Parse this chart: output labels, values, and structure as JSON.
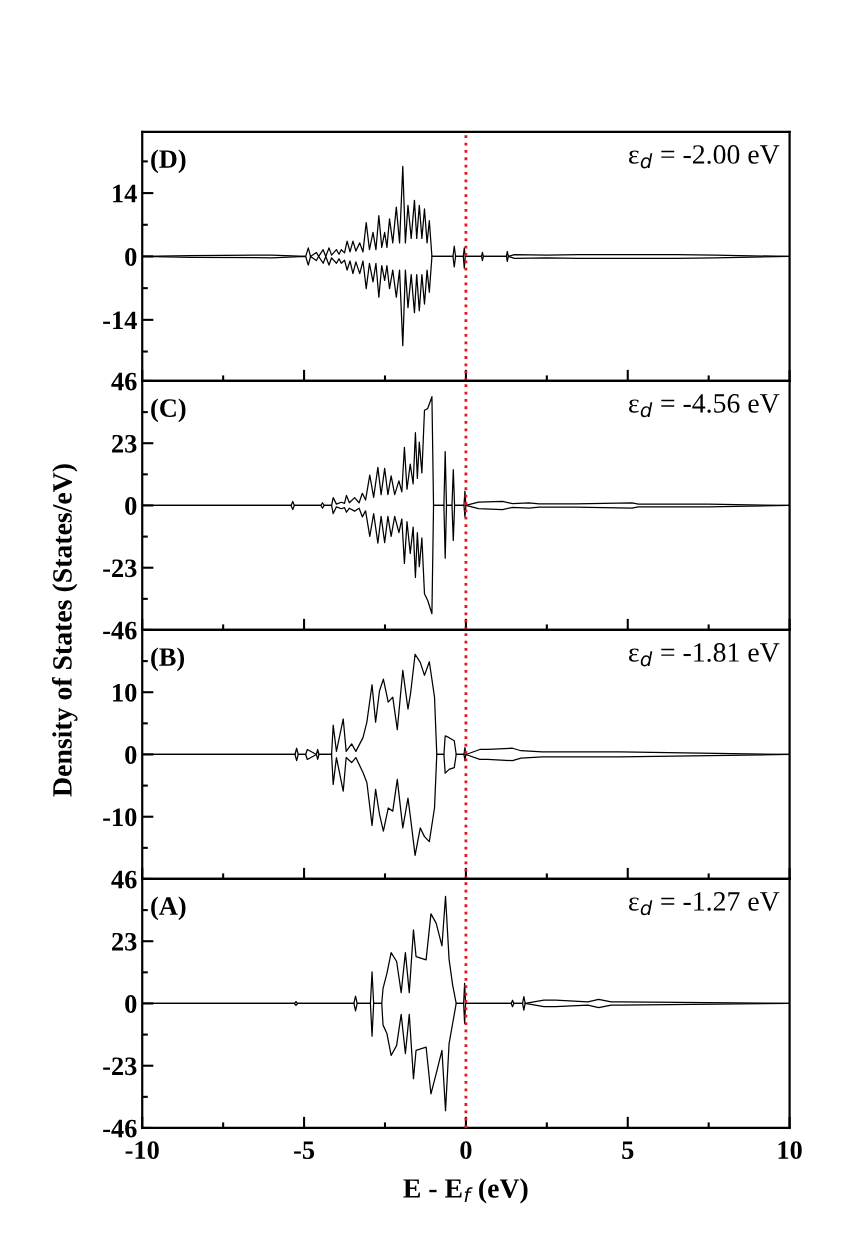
{
  "chart_data": [
    {
      "type": "line",
      "annotations": [
        "(D)",
        "ε$_{d}$ = -2.00 eV"
      ],
      "xlim": [
        -10,
        10
      ],
      "xticks": [
        -10,
        -5,
        0,
        5,
        10,
        {
          "value": -7.5,
          "label": null
        },
        {
          "value": -2.5,
          "label": null
        },
        {
          "value": 2.5,
          "label": null
        },
        {
          "value": 7.5,
          "label": null
        }
      ],
      "ylim": [
        -27.5,
        27.5
      ],
      "yticks": [
        -14,
        0,
        14,
        {
          "value": -21,
          "label": null
        },
        {
          "value": -7,
          "label": null
        },
        {
          "value": 7,
          "label": null
        },
        {
          "value": 21,
          "label": null
        }
      ],
      "tick_labels": "y",
      "grid": false,
      "legend": false,
      "ref_lines": [
        {
          "axis": "x",
          "value": 0,
          "color": "#e8141c",
          "line_style": "dotted"
        }
      ],
      "series": [
        {
          "color": "#000000",
          "x": [
            -10,
            -8.5,
            -6.0,
            -4.95,
            -4.87,
            -4.8,
            -4.62,
            -4.55,
            -4.41,
            -4.33,
            -4.23,
            -4.15,
            -4.0,
            -3.92,
            -3.85,
            -3.75,
            -3.67,
            -3.58,
            -3.49,
            -3.4,
            -3.28,
            -3.18,
            -3.08,
            -2.98,
            -2.87,
            -2.78,
            -2.69,
            -2.6,
            -2.51,
            -2.44,
            -2.36,
            -2.26,
            -2.15,
            -2.05,
            -1.95,
            -1.87,
            -1.79,
            -1.69,
            -1.59,
            -1.52,
            -1.44,
            -1.36,
            -1.28,
            -1.2,
            -1.13,
            -1.05,
            -0.4,
            -0.36,
            -0.32,
            -0.08,
            -0.05,
            -0.02,
            0.48,
            0.51,
            0.54,
            1.25,
            1.28,
            1.31,
            1.5,
            2.5,
            3.5,
            4.5,
            5.5,
            6.5,
            7.7,
            10
          ],
          "values": [
            0,
            0.2,
            0.3,
            0,
            1.9,
            0,
            0.9,
            0,
            1.5,
            0,
            1.9,
            0.3,
            1.5,
            0.5,
            1.5,
            0.8,
            3.4,
            1.0,
            3.4,
            1.2,
            3.0,
            1.0,
            7.5,
            1.5,
            5.3,
            1.5,
            9.0,
            2.0,
            5.3,
            2.0,
            8.3,
            3.0,
            10.9,
            3.0,
            19.9,
            3.0,
            11.3,
            4.0,
            12.4,
            4.0,
            11.3,
            4.0,
            10.5,
            3.0,
            7.9,
            0,
            0,
            2.3,
            0,
            0,
            1.9,
            0,
            0,
            0.9,
            0,
            0,
            1.1,
            0,
            0.4,
            0.3,
            0.4,
            0.4,
            0.4,
            0.4,
            0.3,
            0
          ]
        },
        {
          "color": "#000000",
          "x": [
            -10,
            -8.5,
            -6.0,
            -4.95,
            -4.87,
            -4.8,
            -4.62,
            -4.55,
            -4.41,
            -4.33,
            -4.23,
            -4.15,
            -4.0,
            -3.92,
            -3.85,
            -3.75,
            -3.67,
            -3.58,
            -3.49,
            -3.4,
            -3.28,
            -3.18,
            -3.08,
            -2.98,
            -2.87,
            -2.78,
            -2.69,
            -2.6,
            -2.51,
            -2.44,
            -2.36,
            -2.26,
            -2.15,
            -2.05,
            -1.95,
            -1.87,
            -1.79,
            -1.69,
            -1.59,
            -1.52,
            -1.44,
            -1.36,
            -1.28,
            -1.2,
            -1.13,
            -1.05,
            -0.4,
            -0.36,
            -0.32,
            -0.08,
            -0.05,
            -0.02,
            0.48,
            0.51,
            0.54,
            1.25,
            1.28,
            1.31,
            1.5,
            2.5,
            3.5,
            4.5,
            5.5,
            6.5,
            7.7,
            10
          ],
          "values": [
            0,
            -0.2,
            -0.3,
            0,
            -1.9,
            0,
            -0.9,
            0,
            -1.5,
            0,
            -1.9,
            -0.3,
            -1.5,
            -0.5,
            -1.5,
            -0.8,
            -3.0,
            -1.0,
            -3.8,
            -1.2,
            -3.8,
            -1.0,
            -7.1,
            -1.5,
            -5.6,
            -1.5,
            -9.0,
            -2.0,
            -5.3,
            -2.0,
            -7.1,
            -3.0,
            -9.0,
            -3.0,
            -19.7,
            -3.0,
            -11.3,
            -4.0,
            -12.4,
            -4.0,
            -12.0,
            -4.0,
            -10.5,
            -3.0,
            -7.9,
            0,
            0,
            -2.3,
            0,
            0,
            -2.6,
            0,
            0,
            -0.9,
            0,
            0,
            -1.1,
            0,
            -0.4,
            -0.3,
            -0.4,
            -0.4,
            -0.4,
            -0.4,
            -0.3,
            0
          ]
        }
      ]
    },
    {
      "type": "line",
      "annotations": [
        "(C)",
        "ε$_{d}$ = -4.56 eV"
      ],
      "ylabel": "Density of States (States/eV)",
      "xlim": [
        -10,
        10
      ],
      "xticks": [
        -10,
        -5,
        0,
        5,
        10,
        {
          "value": -7.5,
          "label": null
        },
        {
          "value": -2.5,
          "label": null
        },
        {
          "value": 2.5,
          "label": null
        },
        {
          "value": 7.5,
          "label": null
        }
      ],
      "ylim": [
        -46,
        46
      ],
      "yticks": [
        -46,
        -23,
        0,
        23,
        46,
        {
          "value": -34.5,
          "label": null
        },
        {
          "value": -11.5,
          "label": null
        },
        {
          "value": 11.5,
          "label": null
        },
        {
          "value": 34.5,
          "label": null
        }
      ],
      "tick_labels": "y",
      "grid": false,
      "legend": false,
      "ref_lines": [
        {
          "axis": "x",
          "value": 0,
          "color": "#e8141c",
          "line_style": "dotted"
        }
      ],
      "series": [
        {
          "color": "#000000",
          "x": [
            -10,
            -5.4,
            -5.35,
            -5.3,
            -4.48,
            -4.43,
            -4.38,
            -4.15,
            -4.1,
            -4.0,
            -3.85,
            -3.75,
            -3.69,
            -3.6,
            -3.44,
            -3.3,
            -3.2,
            -3.1,
            -2.97,
            -2.85,
            -2.72,
            -2.62,
            -2.51,
            -2.41,
            -2.31,
            -2.2,
            -2.07,
            -1.98,
            -1.9,
            -1.82,
            -1.72,
            -1.63,
            -1.56,
            -1.5,
            -1.44,
            -1.36,
            -1.28,
            -1.18,
            -1.05,
            -1.0,
            -0.68,
            -0.64,
            -0.6,
            -0.43,
            -0.39,
            -0.35,
            -0.06,
            -0.03,
            0.0,
            0.39,
            1.13,
            1.44,
            1.95,
            2.26,
            2.8,
            3.38,
            5.13,
            5.33,
            6.4,
            7.49,
            10
          ],
          "values": [
            0,
            0,
            1.5,
            0,
            0,
            1.0,
            0,
            0,
            2.9,
            0.5,
            1.2,
            0.8,
            3.7,
            1.0,
            2.9,
            1.0,
            4.5,
            2.0,
            11.2,
            3.0,
            14.1,
            4.0,
            13.7,
            4.0,
            10.9,
            4.0,
            9.1,
            5.0,
            21.5,
            6.0,
            15.3,
            8.0,
            26.9,
            10.0,
            23.4,
            12.0,
            35.2,
            35.8,
            40.2,
            0,
            0,
            19.9,
            0,
            0,
            13.2,
            0,
            0,
            5.3,
            0,
            1.2,
            1.5,
            0.7,
            1.0,
            0.6,
            0.6,
            0.6,
            1.0,
            0.5,
            0.5,
            0.5,
            0
          ]
        },
        {
          "color": "#000000",
          "x": [
            -10,
            -5.4,
            -5.35,
            -5.3,
            -4.48,
            -4.43,
            -4.38,
            -4.15,
            -4.1,
            -4.0,
            -3.85,
            -3.75,
            -3.69,
            -3.6,
            -3.44,
            -3.3,
            -3.2,
            -3.1,
            -2.97,
            -2.85,
            -2.72,
            -2.62,
            -2.51,
            -2.41,
            -2.31,
            -2.2,
            -2.07,
            -1.98,
            -1.9,
            -1.82,
            -1.72,
            -1.63,
            -1.56,
            -1.5,
            -1.44,
            -1.36,
            -1.28,
            -1.18,
            -1.05,
            -1.0,
            -0.68,
            -0.64,
            -0.6,
            -0.43,
            -0.39,
            -0.35,
            -0.06,
            -0.03,
            0.0,
            0.39,
            1.13,
            1.44,
            1.95,
            2.26,
            2.8,
            3.38,
            5.13,
            5.33,
            6.4,
            7.49,
            10
          ],
          "values": [
            0,
            0,
            -1.5,
            0,
            0,
            -1.0,
            0,
            0,
            -3.0,
            -0.5,
            -1.2,
            -0.8,
            -2.5,
            -1.0,
            -2.1,
            -1.0,
            -4.2,
            -2.0,
            -11.4,
            -3.0,
            -13.9,
            -4.0,
            -13.7,
            -4.0,
            -11.4,
            -4.0,
            -10.0,
            -5.0,
            -21.4,
            -6.0,
            -17.7,
            -8.0,
            -26.6,
            -10.0,
            -22.6,
            -12.0,
            -32.6,
            -35.1,
            -40.0,
            0,
            0,
            -19.5,
            0,
            0,
            -12.9,
            0,
            0,
            -4.2,
            0,
            -1.2,
            -1.5,
            -0.7,
            -1.0,
            -0.6,
            -0.6,
            -0.6,
            -1.0,
            -0.5,
            -0.5,
            -0.5,
            0
          ]
        }
      ]
    },
    {
      "type": "line",
      "annotations": [
        "(B)",
        "ε$_{d}$ = -1.81 eV"
      ],
      "xlim": [
        -10,
        10
      ],
      "xticks": [
        -10,
        -5,
        0,
        5,
        10,
        {
          "value": -7.5,
          "label": null
        },
        {
          "value": -2.5,
          "label": null
        },
        {
          "value": 2.5,
          "label": null
        },
        {
          "value": 7.5,
          "label": null
        }
      ],
      "ylim": [
        -20,
        20
      ],
      "yticks": [
        -10,
        0,
        10,
        {
          "value": -15,
          "label": null
        },
        {
          "value": -5,
          "label": null
        },
        {
          "value": 5,
          "label": null
        },
        {
          "value": 15,
          "label": null
        }
      ],
      "tick_labels": "y",
      "grid": false,
      "legend": false,
      "ref_lines": [
        {
          "axis": "x",
          "value": 0,
          "color": "#e8141c",
          "line_style": "dotted"
        }
      ],
      "series": [
        {
          "color": "#000000",
          "x": [
            -10,
            -5.28,
            -5.23,
            -5.18,
            -4.95,
            -4.9,
            -4.62,
            -4.58,
            -4.54,
            -4.15,
            -4.1,
            -4.0,
            -3.79,
            -3.7,
            -3.53,
            -3.4,
            -3.18,
            -3.06,
            -2.9,
            -2.79,
            -2.67,
            -2.55,
            -2.4,
            -2.26,
            -2.12,
            -1.95,
            -1.79,
            -1.71,
            -1.57,
            -1.41,
            -1.28,
            -1.13,
            -0.97,
            -0.9,
            -0.68,
            -0.64,
            -0.52,
            -0.36,
            -0.3,
            -0.06,
            -0.03,
            0.0,
            0.43,
            0.67,
            1.44,
            1.7,
            2.36,
            2.82,
            3.18,
            4.0,
            4.77,
            10
          ],
          "values": [
            0,
            0,
            1.0,
            0,
            0,
            0.8,
            0,
            0.8,
            0,
            0,
            4.7,
            0.5,
            5.7,
            0.5,
            1.7,
            0.5,
            2.7,
            5.2,
            11.2,
            5.2,
            10.2,
            12.1,
            8.4,
            9.2,
            4.0,
            13.5,
            7.3,
            9.8,
            16.1,
            14.8,
            12.7,
            14.9,
            9.2,
            0,
            0,
            3.0,
            2.7,
            2.2,
            0,
            0,
            1.1,
            0,
            0.8,
            0.8,
            1.0,
            0.6,
            0.4,
            0.4,
            0.4,
            0.4,
            0.4,
            0
          ]
        },
        {
          "color": "#000000",
          "x": [
            -10,
            -5.28,
            -5.23,
            -5.18,
            -4.95,
            -4.9,
            -4.62,
            -4.58,
            -4.54,
            -4.15,
            -4.1,
            -4.0,
            -3.79,
            -3.7,
            -3.53,
            -3.4,
            -3.18,
            -3.06,
            -2.9,
            -2.79,
            -2.67,
            -2.55,
            -2.4,
            -2.26,
            -2.12,
            -1.95,
            -1.79,
            -1.71,
            -1.57,
            -1.41,
            -1.28,
            -1.13,
            -0.97,
            -0.9,
            -0.68,
            -0.64,
            -0.52,
            -0.36,
            -0.3,
            -0.06,
            -0.03,
            0.0,
            0.43,
            0.67,
            1.44,
            1.7,
            2.36,
            2.82,
            3.18,
            4.0,
            4.77,
            10
          ],
          "values": [
            0,
            0,
            -1.0,
            0,
            0,
            -0.8,
            0,
            -0.8,
            0,
            0,
            -4.8,
            -0.5,
            -5.9,
            -0.5,
            -1.3,
            -0.5,
            -2.9,
            -4.5,
            -11.4,
            -5.6,
            -9.6,
            -12.3,
            -8.6,
            -9.1,
            -4.0,
            -11.8,
            -7.0,
            -10.2,
            -16.2,
            -11.8,
            -13.2,
            -14.0,
            -8.6,
            0,
            0,
            -3.0,
            -2.4,
            -2.1,
            0,
            0,
            -1.0,
            0,
            -0.8,
            -0.8,
            -1.0,
            -0.6,
            -0.4,
            -0.4,
            -0.4,
            -0.4,
            -0.4,
            0
          ]
        }
      ]
    },
    {
      "type": "line",
      "annotations": [
        "(A)",
        "ε$_{d}$ = -1.27 eV"
      ],
      "xlabel": "E - E$_{f}$ (eV)",
      "xlim": [
        -10,
        10
      ],
      "xticks": [
        -10,
        -5,
        0,
        5,
        10,
        {
          "value": -7.5,
          "label": null
        },
        {
          "value": -2.5,
          "label": null
        },
        {
          "value": 2.5,
          "label": null
        },
        {
          "value": 7.5,
          "label": null
        }
      ],
      "ylim": [
        -46,
        46
      ],
      "yticks": [
        -46,
        -23,
        0,
        23,
        46,
        {
          "value": -34.5,
          "label": null
        },
        {
          "value": -11.5,
          "label": null
        },
        {
          "value": 11.5,
          "label": null
        },
        {
          "value": 34.5,
          "label": null
        }
      ],
      "grid": false,
      "legend": false,
      "ref_lines": [
        {
          "axis": "x",
          "value": 0,
          "color": "#e8141c",
          "line_style": "dotted"
        }
      ],
      "series": [
        {
          "color": "#000000",
          "x": [
            -10,
            -5.3,
            -5.25,
            -5.2,
            -3.46,
            -3.41,
            -3.36,
            -2.95,
            -2.9,
            -2.85,
            -2.6,
            -2.56,
            -2.44,
            -2.31,
            -2.14,
            -2.0,
            -1.87,
            -1.75,
            -1.62,
            -1.54,
            -1.23,
            -1.08,
            -0.92,
            -0.74,
            -0.63,
            -0.52,
            -0.41,
            -0.3,
            -0.07,
            -0.04,
            -0.01,
            1.4,
            1.44,
            1.48,
            1.75,
            1.79,
            1.83,
            2.41,
            2.6,
            2.77,
            3.77,
            4.1,
            4.49,
            4.8,
            10
          ],
          "values": [
            0,
            0,
            0.7,
            0,
            0,
            2.7,
            0,
            0,
            11.7,
            0,
            0,
            5.6,
            11.1,
            18.8,
            15.5,
            4.0,
            18.8,
            4.0,
            27.2,
            17.3,
            16.1,
            33.1,
            29.7,
            21.3,
            39.6,
            16.3,
            6.8,
            0,
            0,
            7.4,
            0,
            0,
            1.2,
            0,
            0,
            2.5,
            0,
            1.2,
            1.2,
            1.2,
            0.6,
            1.5,
            0.6,
            0.6,
            0
          ]
        },
        {
          "color": "#000000",
          "x": [
            -10,
            -5.3,
            -5.25,
            -5.2,
            -3.46,
            -3.41,
            -3.36,
            -2.95,
            -2.9,
            -2.85,
            -2.6,
            -2.56,
            -2.44,
            -2.31,
            -2.14,
            -2.0,
            -1.87,
            -1.75,
            -1.62,
            -1.54,
            -1.23,
            -1.08,
            -0.92,
            -0.74,
            -0.63,
            -0.52,
            -0.41,
            -0.3,
            -0.07,
            -0.04,
            -0.01,
            1.4,
            1.44,
            1.48,
            1.75,
            1.79,
            1.83,
            2.41,
            2.6,
            2.77,
            3.77,
            4.1,
            4.49,
            4.8,
            10
          ],
          "values": [
            0,
            0,
            -0.7,
            0,
            0,
            -2.7,
            0,
            0,
            -12.1,
            0,
            0,
            -8.0,
            -11.1,
            -19.2,
            -15.5,
            -4.0,
            -18.5,
            -4.0,
            -27.8,
            -17.3,
            -16.1,
            -33.4,
            -26.0,
            -17.3,
            -39.6,
            -14.8,
            -7.4,
            0,
            0,
            -7.4,
            0,
            0,
            -1.2,
            0,
            0,
            -2.5,
            0,
            -1.2,
            -1.2,
            -1.2,
            -0.6,
            -1.5,
            -0.6,
            -0.6,
            0
          ]
        }
      ]
    }
  ]
}
